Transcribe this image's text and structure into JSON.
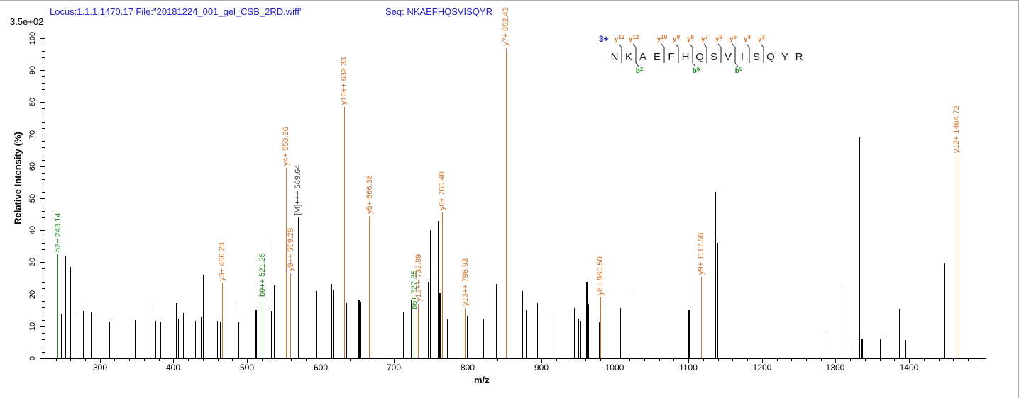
{
  "header": {
    "locus_file": "Locus:1.1.1.1470.17 File:\"20181224_001_gel_CSB_2RD.wiff\"",
    "seq": "Seq: NKAEFHQSVISQYR"
  },
  "scale_label": "3.5e+02",
  "chart_data": {
    "type": "bar",
    "subtype": "ms2-stick-spectrum",
    "title": "",
    "xlabel": "m/z",
    "ylabel": "Relative  Intensity (%)",
    "xlim": [
      225,
      1505
    ],
    "ylim": [
      0,
      100
    ],
    "x_major_ticks": [
      300,
      400,
      500,
      600,
      700,
      800,
      900,
      1000,
      1100,
      1200,
      1300,
      1400
    ],
    "x_minor_step": 20,
    "y_major_ticks": [
      0,
      10,
      20,
      30,
      40,
      50,
      60,
      70,
      80,
      90,
      100
    ],
    "y_minor_step": 2,
    "grid": false,
    "legend": "none",
    "colors": {
      "y_ion": "#d4722b",
      "b_ion": "#1e8b1e",
      "precursor_label": "#404040",
      "peak_default": "#000000",
      "header_text": "#2323c8",
      "charge_text": "#2323c8"
    },
    "peaks": [
      {
        "m": 243.14,
        "i": 32.5,
        "c": "b",
        "l": "b2+ 243.14"
      },
      {
        "m": 248.5,
        "i": 14,
        "w": 2
      },
      {
        "m": 253.5,
        "i": 32
      },
      {
        "m": 260.5,
        "i": 28.5
      },
      {
        "m": 269,
        "i": 14.2
      },
      {
        "m": 277.5,
        "i": 14.8
      },
      {
        "m": 285,
        "i": 20
      },
      {
        "m": 288,
        "i": 14.3
      },
      {
        "m": 313,
        "i": 11.5
      },
      {
        "m": 348,
        "i": 12,
        "w": 2
      },
      {
        "m": 365,
        "i": 14.5
      },
      {
        "m": 372.5,
        "i": 17.5
      },
      {
        "m": 376,
        "i": 11.8
      },
      {
        "m": 383,
        "i": 11.2
      },
      {
        "m": 404,
        "i": 17.3,
        "w": 2
      },
      {
        "m": 407,
        "i": 12.3
      },
      {
        "m": 414,
        "i": 14.2
      },
      {
        "m": 430,
        "i": 11.7
      },
      {
        "m": 435,
        "i": 11.3
      },
      {
        "m": 438,
        "i": 13
      },
      {
        "m": 440.5,
        "i": 26
      },
      {
        "m": 460,
        "i": 11.8
      },
      {
        "m": 463.5,
        "i": 11.3
      },
      {
        "m": 466.23,
        "i": 23.5,
        "c": "y",
        "l": "y3+ 466.23"
      },
      {
        "m": 485,
        "i": 18
      },
      {
        "m": 489,
        "i": 11.3
      },
      {
        "m": 512,
        "i": 15,
        "w": 2
      },
      {
        "m": 514.5,
        "i": 17.2
      },
      {
        "m": 521.25,
        "i": 18.5,
        "c": "b",
        "l": "b9++ 521.25"
      },
      {
        "m": 531,
        "i": 15.5
      },
      {
        "m": 533,
        "i": 14.9
      },
      {
        "m": 534.5,
        "i": 37.7
      },
      {
        "m": 537.5,
        "i": 22.7
      },
      {
        "m": 553.26,
        "i": 59.5,
        "c": "y",
        "l": "y4+ 553.26"
      },
      {
        "m": 559.29,
        "i": 26.5,
        "c": "y",
        "l": "y9++ 559.29"
      },
      {
        "m": 569.64,
        "i": 44,
        "c": "M",
        "l": "[M]+++ 569.64"
      },
      {
        "m": 594.5,
        "i": 21
      },
      {
        "m": 615,
        "i": 23.3,
        "w": 2
      },
      {
        "m": 617.5,
        "i": 21.5
      },
      {
        "m": 632.33,
        "i": 78.5,
        "c": "y",
        "l": "y10++ 632.33"
      },
      {
        "m": 635.5,
        "i": 17.3
      },
      {
        "m": 652,
        "i": 18.4,
        "w": 2
      },
      {
        "m": 654.5,
        "i": 17.8
      },
      {
        "m": 666.38,
        "i": 44.5,
        "c": "y",
        "l": "y5+ 666.38"
      },
      {
        "m": 713,
        "i": 14.6
      },
      {
        "m": 723.5,
        "i": 18.2
      },
      {
        "m": 727.35,
        "i": 14.5,
        "c": "b",
        "l": "b6+ 727.35"
      },
      {
        "m": 732.89,
        "i": 17,
        "c": "y",
        "l": "y12++ 732.89"
      },
      {
        "m": 746.5,
        "i": 24,
        "w": 2
      },
      {
        "m": 749.7,
        "i": 40
      },
      {
        "m": 754.5,
        "i": 28.8
      },
      {
        "m": 760.3,
        "i": 42.9
      },
      {
        "m": 762.5,
        "i": 20.3,
        "w": 2
      },
      {
        "m": 765.4,
        "i": 45.5,
        "c": "y",
        "l": "y6+ 765.40"
      },
      {
        "m": 772,
        "i": 12.2
      },
      {
        "m": 796.93,
        "i": 15.8,
        "c": "y",
        "l": "y13++ 796.93"
      },
      {
        "m": 799.5,
        "i": 13.3
      },
      {
        "m": 822,
        "i": 12.2
      },
      {
        "m": 839,
        "i": 23.3
      },
      {
        "m": 852.43,
        "i": 97,
        "c": "y",
        "l": "y7+ 852.43"
      },
      {
        "m": 875,
        "i": 21
      },
      {
        "m": 879,
        "i": 15
      },
      {
        "m": 895,
        "i": 17.3
      },
      {
        "m": 916,
        "i": 14.4
      },
      {
        "m": 945,
        "i": 15.8
      },
      {
        "m": 951,
        "i": 12.3
      },
      {
        "m": 953.5,
        "i": 11.7
      },
      {
        "m": 962,
        "i": 24,
        "w": 2
      },
      {
        "m": 964.5,
        "i": 17
      },
      {
        "m": 979,
        "i": 11.3
      },
      {
        "m": 980.5,
        "i": 19,
        "c": "y",
        "l": "y8+ 980.50"
      },
      {
        "m": 989.5,
        "i": 17.8
      },
      {
        "m": 1008,
        "i": 15.8
      },
      {
        "m": 1026,
        "i": 20.2
      },
      {
        "m": 1101,
        "i": 15.1,
        "w": 2
      },
      {
        "m": 1117.58,
        "i": 25.5,
        "c": "y",
        "l": "y9+ 1117.58"
      },
      {
        "m": 1137,
        "i": 52
      },
      {
        "m": 1139.5,
        "i": 36,
        "w": 2
      },
      {
        "m": 1286,
        "i": 8.8
      },
      {
        "m": 1309,
        "i": 21.8
      },
      {
        "m": 1322,
        "i": 5.8
      },
      {
        "m": 1333,
        "i": 69
      },
      {
        "m": 1336,
        "i": 5.9,
        "w": 2
      },
      {
        "m": 1361,
        "i": 5.9
      },
      {
        "m": 1387,
        "i": 15.5
      },
      {
        "m": 1396,
        "i": 5.8
      },
      {
        "m": 1449,
        "i": 29.7
      },
      {
        "m": 1464.72,
        "i": 63.5,
        "c": "y",
        "l": "y12+ 1464.72"
      }
    ]
  },
  "peptide": {
    "charge_label": "3+",
    "residues": [
      "N",
      "K",
      "A",
      "E",
      "F",
      "H",
      "Q",
      "S",
      "V",
      "I",
      "S",
      "Q",
      "Y",
      "R"
    ],
    "y_markers": [
      {
        "after": 1,
        "ion": "y13"
      },
      {
        "after": 2,
        "ion": "y12"
      },
      {
        "after": 4,
        "ion": "y10"
      },
      {
        "after": 5,
        "ion": "y9"
      },
      {
        "after": 6,
        "ion": "y8"
      },
      {
        "after": 7,
        "ion": "y7"
      },
      {
        "after": 8,
        "ion": "y6"
      },
      {
        "after": 9,
        "ion": "y5"
      },
      {
        "after": 10,
        "ion": "y4"
      },
      {
        "after": 11,
        "ion": "y3"
      }
    ],
    "b_markers": [
      {
        "after": 2,
        "ion": "b2"
      },
      {
        "after": 6,
        "ion": "b6"
      },
      {
        "after": 9,
        "ion": "b9"
      }
    ]
  }
}
